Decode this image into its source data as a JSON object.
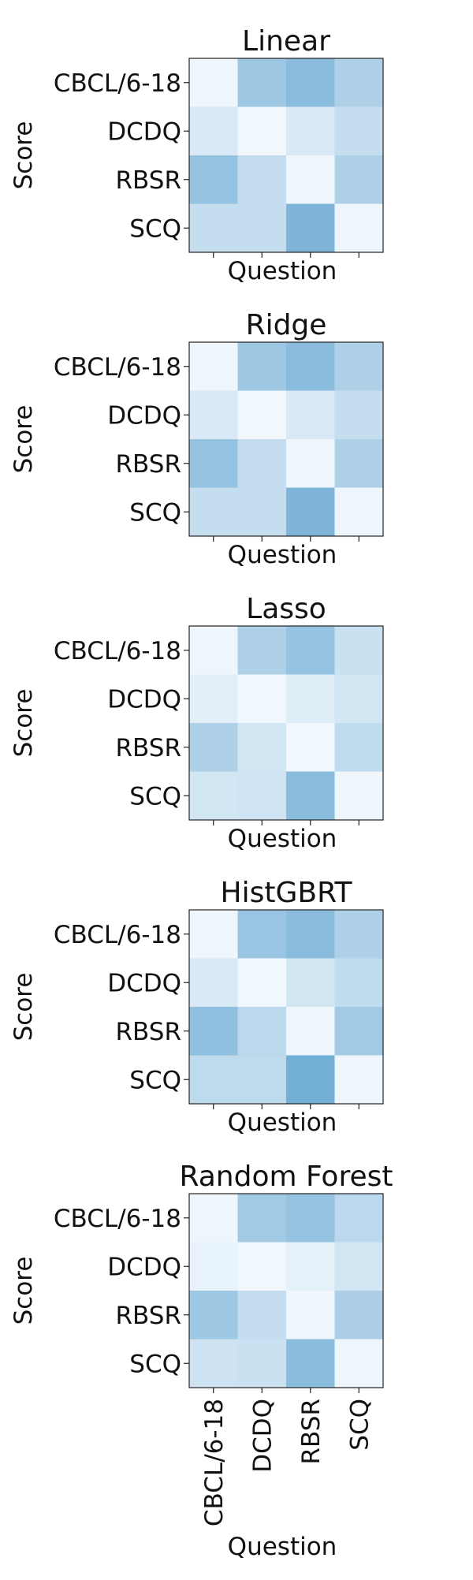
{
  "chart_data": [
    {
      "type": "heatmap",
      "title": "Linear",
      "xlabel": "Question",
      "ylabel": "Score",
      "rows": [
        "CBCL/6-18",
        "DCDQ",
        "RBSR",
        "SCQ"
      ],
      "columns": [
        "CBCL/6-18",
        "DCDQ",
        "RBSR",
        "SCQ"
      ],
      "show_x_tick_labels": false,
      "values": [
        [
          0.03,
          0.3,
          0.36,
          0.24
        ],
        [
          0.1,
          0.02,
          0.1,
          0.17
        ],
        [
          0.32,
          0.17,
          0.03,
          0.24
        ],
        [
          0.17,
          0.17,
          0.4,
          0.03
        ]
      ]
    },
    {
      "type": "heatmap",
      "title": "Ridge",
      "xlabel": "Question",
      "ylabel": "Score",
      "rows": [
        "CBCL/6-18",
        "DCDQ",
        "RBSR",
        "SCQ"
      ],
      "columns": [
        "CBCL/6-18",
        "DCDQ",
        "RBSR",
        "SCQ"
      ],
      "show_x_tick_labels": false,
      "values": [
        [
          0.03,
          0.3,
          0.36,
          0.24
        ],
        [
          0.1,
          0.02,
          0.1,
          0.17
        ],
        [
          0.32,
          0.17,
          0.03,
          0.24
        ],
        [
          0.17,
          0.17,
          0.4,
          0.03
        ]
      ]
    },
    {
      "type": "heatmap",
      "title": "Lasso",
      "xlabel": "Question",
      "ylabel": "Score",
      "rows": [
        "CBCL/6-18",
        "DCDQ",
        "RBSR",
        "SCQ"
      ],
      "columns": [
        "CBCL/6-18",
        "DCDQ",
        "RBSR",
        "SCQ"
      ],
      "show_x_tick_labels": false,
      "values": [
        [
          0.03,
          0.24,
          0.32,
          0.15
        ],
        [
          0.07,
          0.02,
          0.08,
          0.12
        ],
        [
          0.24,
          0.12,
          0.02,
          0.18
        ],
        [
          0.12,
          0.13,
          0.36,
          0.03
        ]
      ]
    },
    {
      "type": "heatmap",
      "title": "HistGBRT",
      "xlabel": "Question",
      "ylabel": "Score",
      "rows": [
        "CBCL/6-18",
        "DCDQ",
        "RBSR",
        "SCQ"
      ],
      "columns": [
        "CBCL/6-18",
        "DCDQ",
        "RBSR",
        "SCQ"
      ],
      "show_x_tick_labels": false,
      "values": [
        [
          0.03,
          0.31,
          0.36,
          0.24
        ],
        [
          0.1,
          0.02,
          0.12,
          0.18
        ],
        [
          0.34,
          0.2,
          0.03,
          0.28
        ],
        [
          0.19,
          0.19,
          0.44,
          0.03
        ]
      ]
    },
    {
      "type": "heatmap",
      "title": "Random Forest",
      "xlabel": "Question",
      "ylabel": "Score",
      "rows": [
        "CBCL/6-18",
        "DCDQ",
        "RBSR",
        "SCQ"
      ],
      "columns": [
        "CBCL/6-18",
        "DCDQ",
        "RBSR",
        "SCQ"
      ],
      "show_x_tick_labels": true,
      "values": [
        [
          0.03,
          0.28,
          0.32,
          0.2
        ],
        [
          0.05,
          0.02,
          0.06,
          0.12
        ],
        [
          0.3,
          0.17,
          0.03,
          0.25
        ],
        [
          0.14,
          0.15,
          0.36,
          0.03
        ]
      ]
    }
  ]
}
